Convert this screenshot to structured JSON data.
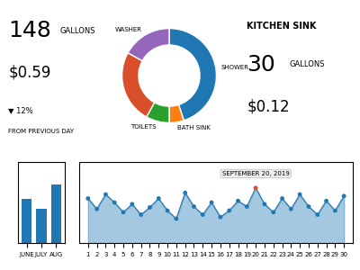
{
  "chart_data": [
    {
      "type": "pie",
      "categories": [
        "SHOWER",
        "BATH SINK",
        "TOILETS",
        null,
        "WASHER"
      ],
      "values": [
        0.45,
        0.05,
        0.08,
        0.25,
        0.17
      ],
      "colors": [
        "#1f77b4",
        "#ff7f0e",
        "#2ca02c",
        "#d94f2b",
        "#9467bd"
      ],
      "annotations": [
        "148",
        "GALLONS",
        "$0.59",
        "▼ 12%",
        "FROM PREVIOUS DAY",
        "KITCHEN SINK",
        "30",
        "GALLONS",
        "$0.12"
      ]
    },
    {
      "type": "bar",
      "categories": [
        "JUNE",
        "JULY",
        "AUG"
      ],
      "values": [
        0.55,
        0.42,
        0.72
      ],
      "ylim": [
        0,
        1
      ],
      "tick_labels": "x"
    },
    {
      "type": "area",
      "x": [
        1,
        2,
        3,
        4,
        5,
        6,
        7,
        8,
        9,
        10,
        11,
        12,
        13,
        14,
        15,
        16,
        17,
        18,
        19,
        20,
        21,
        22,
        23,
        24,
        25,
        26,
        27,
        28,
        29,
        30
      ],
      "values": [
        0.55,
        0.42,
        0.6,
        0.5,
        0.38,
        0.48,
        0.35,
        0.44,
        0.55,
        0.4,
        0.3,
        0.62,
        0.45,
        0.35,
        0.5,
        0.32,
        0.4,
        0.52,
        0.45,
        0.68,
        0.48,
        0.38,
        0.55,
        0.42,
        0.6,
        0.45,
        0.35,
        0.52,
        0.4,
        0.58
      ],
      "xlim": [
        0,
        31
      ],
      "xticks": [
        1,
        2,
        3,
        4,
        5,
        6,
        7,
        8,
        9,
        10,
        11,
        12,
        13,
        14,
        15,
        16,
        17,
        18,
        19,
        20,
        21,
        22,
        23,
        24,
        25,
        26,
        27,
        28,
        29,
        30
      ],
      "ylim": [
        0,
        1
      ],
      "tick_labels": "x",
      "color": "#1f77b4",
      "colors": [
        "#1f77b4",
        "#1f77b4",
        "#1f77b4",
        "#1f77b4",
        "#1f77b4",
        "#1f77b4",
        "#1f77b4",
        "#1f77b4",
        "#1f77b4",
        "#1f77b4",
        "#1f77b4",
        "#1f77b4",
        "#1f77b4",
        "#1f77b4",
        "#1f77b4",
        "#1f77b4",
        "#1f77b4",
        "#1f77b4",
        "#1f77b4",
        "#d94f2b",
        "#1f77b4",
        "#1f77b4",
        "#1f77b4",
        "#1f77b4",
        "#1f77b4",
        "#1f77b4",
        "#1f77b4",
        "#1f77b4",
        "#1f77b4",
        "#1f77b4"
      ],
      "annotations": [
        {
          "text": "SEPTEMBER 20, 2019",
          "x": 20
        }
      ]
    }
  ]
}
